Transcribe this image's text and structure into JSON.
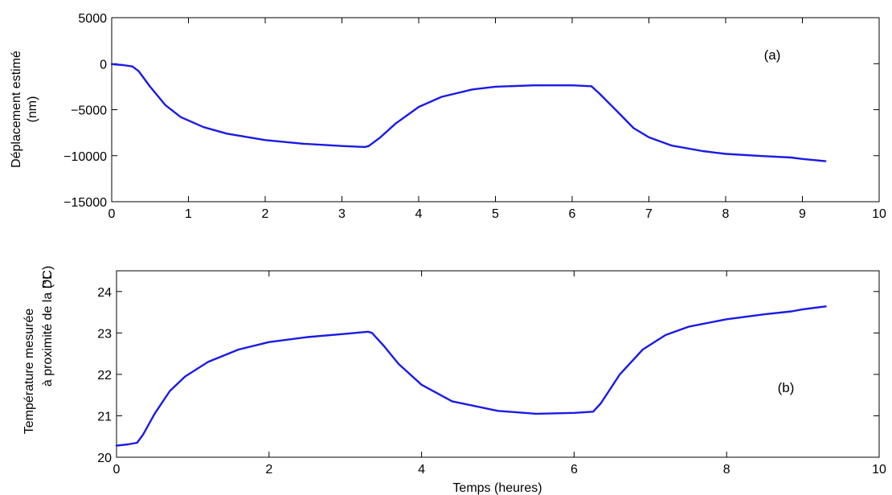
{
  "chart_data": [
    {
      "type": "line",
      "title": "",
      "xlabel": "",
      "ylabel": [
        "Déplacement estimé",
        "(nm)"
      ],
      "xlim": [
        0,
        10
      ],
      "ylim": [
        -15000,
        5000
      ],
      "xticks": [
        0,
        1,
        2,
        3,
        4,
        5,
        6,
        7,
        8,
        9,
        10
      ],
      "yticks": [
        -15000,
        -10000,
        -5000,
        0,
        5000
      ],
      "xtick_labels": [
        "0",
        "1",
        "2",
        "3",
        "4",
        "5",
        "6",
        "7",
        "8",
        "9",
        "10"
      ],
      "ytick_labels": [
        "−15000",
        "−10000",
        "−5000",
        "0",
        "5000"
      ],
      "annotation": "(a)",
      "grid": false,
      "series": [
        {
          "color": "#1a1ae6",
          "points": [
            [
              0,
              -50
            ],
            [
              0.15,
              -150
            ],
            [
              0.27,
              -300
            ],
            [
              0.35,
              -800
            ],
            [
              0.5,
              -2500
            ],
            [
              0.7,
              -4500
            ],
            [
              0.9,
              -5800
            ],
            [
              1.2,
              -6900
            ],
            [
              1.5,
              -7600
            ],
            [
              2.0,
              -8300
            ],
            [
              2.5,
              -8700
            ],
            [
              3.0,
              -8950
            ],
            [
              3.3,
              -9050
            ],
            [
              3.35,
              -8950
            ],
            [
              3.5,
              -8000
            ],
            [
              3.7,
              -6500
            ],
            [
              4.0,
              -4700
            ],
            [
              4.3,
              -3600
            ],
            [
              4.7,
              -2800
            ],
            [
              5.0,
              -2500
            ],
            [
              5.5,
              -2350
            ],
            [
              6.0,
              -2350
            ],
            [
              6.25,
              -2450
            ],
            [
              6.35,
              -3200
            ],
            [
              6.6,
              -5300
            ],
            [
              6.8,
              -7000
            ],
            [
              7.0,
              -8000
            ],
            [
              7.3,
              -8900
            ],
            [
              7.7,
              -9500
            ],
            [
              8.0,
              -9800
            ],
            [
              8.5,
              -10050
            ],
            [
              8.85,
              -10200
            ],
            [
              9.0,
              -10350
            ],
            [
              9.3,
              -10600
            ]
          ]
        }
      ]
    },
    {
      "type": "line",
      "title": "",
      "xlabel": "Temps (heures)",
      "ylabel": [
        "Température mesurée",
        "à proximité de la DL",
        "(°C)"
      ],
      "xlim": [
        0,
        10
      ],
      "ylim": [
        20,
        24.5
      ],
      "xticks": [
        0,
        2,
        4,
        6,
        8,
        10
      ],
      "yticks": [
        20,
        21,
        22,
        23,
        24
      ],
      "xtick_labels": [
        "0",
        "2",
        "4",
        "6",
        "8",
        "10"
      ],
      "ytick_labels": [
        "20",
        "21",
        "22",
        "23",
        "24"
      ],
      "annotation": "(b)",
      "grid": false,
      "series": [
        {
          "color": "#1a1ae6",
          "points": [
            [
              0,
              20.28
            ],
            [
              0.15,
              20.31
            ],
            [
              0.27,
              20.35
            ],
            [
              0.35,
              20.55
            ],
            [
              0.5,
              21.05
            ],
            [
              0.7,
              21.6
            ],
            [
              0.9,
              21.95
            ],
            [
              1.2,
              22.3
            ],
            [
              1.6,
              22.6
            ],
            [
              2.0,
              22.78
            ],
            [
              2.5,
              22.9
            ],
            [
              3.0,
              22.98
            ],
            [
              3.3,
              23.03
            ],
            [
              3.35,
              23.0
            ],
            [
              3.5,
              22.7
            ],
            [
              3.7,
              22.25
            ],
            [
              4.0,
              21.75
            ],
            [
              4.4,
              21.35
            ],
            [
              5.0,
              21.12
            ],
            [
              5.5,
              21.05
            ],
            [
              6.0,
              21.07
            ],
            [
              6.25,
              21.1
            ],
            [
              6.35,
              21.3
            ],
            [
              6.6,
              22.0
            ],
            [
              6.9,
              22.6
            ],
            [
              7.2,
              22.95
            ],
            [
              7.5,
              23.15
            ],
            [
              8.0,
              23.33
            ],
            [
              8.5,
              23.45
            ],
            [
              8.85,
              23.52
            ],
            [
              9.0,
              23.57
            ],
            [
              9.3,
              23.64
            ]
          ]
        }
      ]
    }
  ]
}
